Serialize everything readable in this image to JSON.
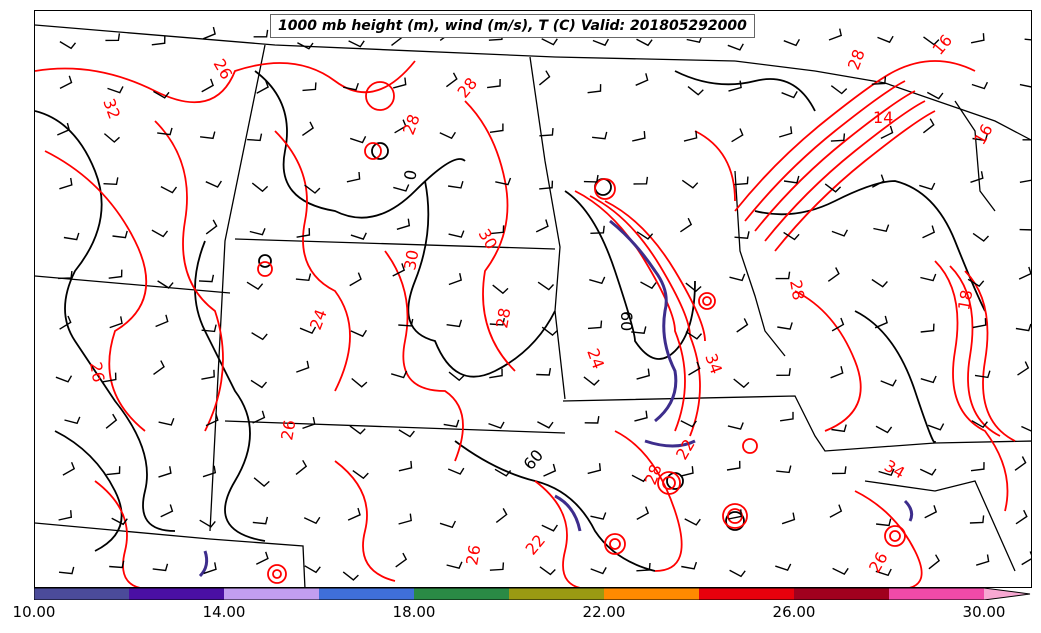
{
  "title": "1000 mb height (m), wind (m/s), T (C) Valid: 201805292000",
  "contour_labels_red": [
    "26",
    "32",
    "28",
    "28",
    "30",
    "30",
    "28",
    "24",
    "26",
    "26",
    "26",
    "24",
    "34",
    "22",
    "22",
    "28",
    "28",
    "34",
    "28",
    "14",
    "16",
    "18",
    "16",
    "26"
  ],
  "contour_labels_black": [
    "0",
    "60",
    "60"
  ],
  "colors": {
    "temperature_contours": "#ff0000",
    "height_contours": "#000000",
    "barbs": "#000000",
    "boundaries": "#000000",
    "wind_shading_dark": "#3d2d8c"
  },
  "colorbar": {
    "min": 10.0,
    "max": 30.0,
    "tick_labels": [
      "10.00",
      "14.00",
      "18.00",
      "22.00",
      "26.00",
      "30.00"
    ],
    "segments": [
      "#4b4b9a",
      "#4a0fa3",
      "#c29ef0",
      "#3f6fd9",
      "#2a8a45",
      "#9a9a12",
      "#ff8a00",
      "#e8000c",
      "#a0001e",
      "#f04aa8"
    ],
    "overflow_color": "#f7a8d2"
  }
}
